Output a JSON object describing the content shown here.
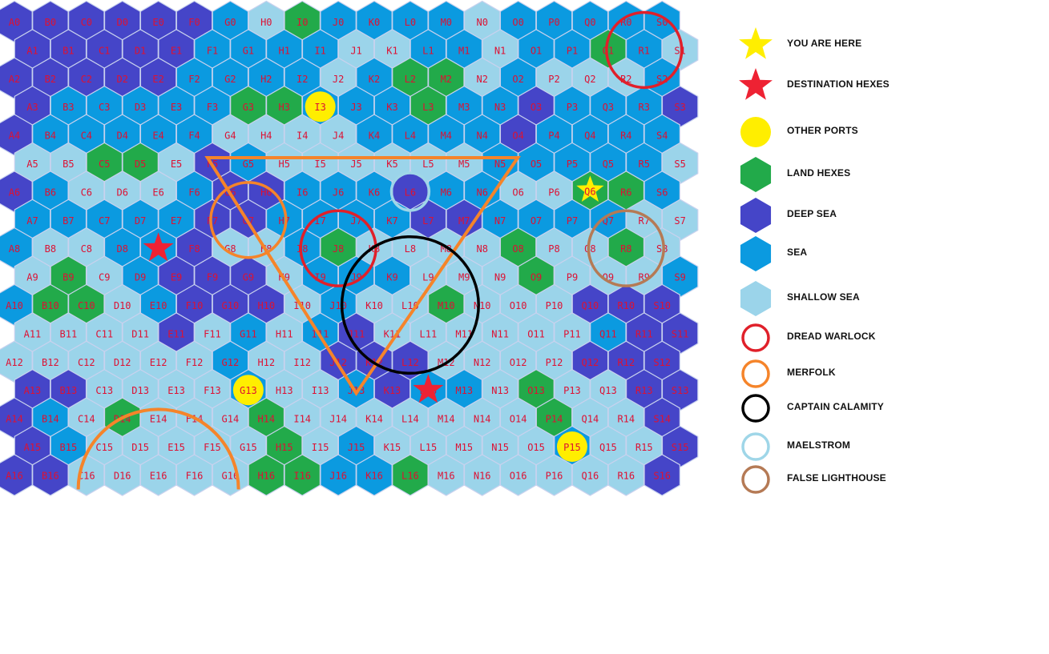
{
  "map": {
    "columns": [
      "A",
      "B",
      "C",
      "D",
      "E",
      "F",
      "G",
      "H",
      "I",
      "J",
      "K",
      "L",
      "M",
      "N",
      "O",
      "P",
      "Q",
      "R",
      "S"
    ],
    "rows": 17,
    "terrain_colors": {
      "deep": "#4545c8",
      "sea": "#0b9ae0",
      "shallow": "#9bd4ea",
      "land": "#22aa4a",
      "port": "#ffee00"
    },
    "default_terrain": "sea",
    "terrain": {
      "deep": [
        "A0",
        "B0",
        "C0",
        "D0",
        "E0",
        "F0",
        "A1",
        "B1",
        "C1",
        "D1",
        "E1",
        "A2",
        "B2",
        "C2",
        "D2",
        "E2",
        "A3",
        "S3",
        "A4",
        "O4",
        "F5",
        "A6",
        "G6",
        "H6",
        "F8",
        "E9",
        "F9",
        "G9",
        "F10",
        "G10",
        "H10",
        "Q10",
        "R10",
        "S10",
        "E11",
        "J11",
        "R11",
        "S11",
        "Q12",
        "R12",
        "S12",
        "A13",
        "B13",
        "K13",
        "R13",
        "S13",
        "A14",
        "S14",
        "A15",
        "S15",
        "A16",
        "B16",
        "S16",
        "L6",
        "J12",
        "K12",
        "L12",
        "O3",
        "L7",
        "M7",
        "F7",
        "G7"
      ],
      "shallow": [
        "H0",
        "N0",
        "J1",
        "K1",
        "N1",
        "S1",
        "J2",
        "N2",
        "P2",
        "Q2",
        "R2",
        "G4",
        "H4",
        "I4",
        "J4",
        "A5",
        "B5",
        "E5",
        "H5",
        "I5",
        "J5",
        "K5",
        "L5",
        "M5",
        "S5",
        "C6",
        "D6",
        "E6",
        "O6",
        "P6",
        "R7",
        "S7",
        "B8",
        "C8",
        "G8",
        "H8",
        "K8",
        "L8",
        "M8",
        "N8",
        "P8",
        "Q8",
        "S8",
        "A9",
        "C9",
        "H9",
        "L9",
        "M9",
        "N9",
        "P9",
        "Q9",
        "R9",
        "D10",
        "I10",
        "K10",
        "L10",
        "N10",
        "O10",
        "P10",
        "A11",
        "B11",
        "C11",
        "D11",
        "F11",
        "H11",
        "K11",
        "L11",
        "M11",
        "N11",
        "O11",
        "P11",
        "A12",
        "B12",
        "C12",
        "D12",
        "E12",
        "F12",
        "H12",
        "I12",
        "M12",
        "N12",
        "O12",
        "P12",
        "C13",
        "D13",
        "E13",
        "F13",
        "H13",
        "I13",
        "N13",
        "P13",
        "Q13",
        "C14",
        "E14",
        "F14",
        "G14",
        "I14",
        "J14",
        "K14",
        "L14",
        "M14",
        "N14",
        "O14",
        "Q14",
        "R14",
        "C15",
        "D15",
        "E15",
        "F15",
        "G15",
        "I15",
        "K15",
        "L15",
        "M15",
        "N15",
        "O15",
        "Q15",
        "R15",
        "C16",
        "D16",
        "E16",
        "F16",
        "G16",
        "M16",
        "N16",
        "O16",
        "P16",
        "Q16",
        "R16"
      ],
      "land": [
        "I0",
        "Q1",
        "L2",
        "M2",
        "G3",
        "H3",
        "L3",
        "C5",
        "D5",
        "R6",
        "Q6",
        "J8",
        "O8",
        "R8",
        "B9",
        "O9",
        "B10",
        "C10",
        "M10",
        "O13",
        "D14",
        "H14",
        "P14",
        "H15",
        "H16",
        "I16",
        "L16"
      ],
      "port": [
        "I3",
        "G13",
        "P15"
      ]
    },
    "you_are_here": "Q6",
    "destinations": [
      "E8",
      "L13"
    ],
    "encounters": [
      {
        "kind": "dread_warlock",
        "center": "R1",
        "radius_hexes": 1.1,
        "color": "#e0202a"
      },
      {
        "kind": "dread_warlock",
        "center": "J8",
        "radius_hexes": 1.1,
        "color": "#e0202a"
      },
      {
        "kind": "merfolk",
        "center": "G7",
        "radius_hexes": 1.1,
        "color": "#f5842a"
      },
      {
        "kind": "captain_calamity",
        "center": "L10",
        "radius_hexes": 2.0,
        "color": "#000000"
      },
      {
        "kind": "maelstrom",
        "center": "L6",
        "radius_hexes": 0.55,
        "color": "#9fd6e8"
      },
      {
        "kind": "false_lighthouse",
        "center": "R8",
        "radius_hexes": 1.1,
        "color": "#b57a55"
      }
    ],
    "merfolk_zone": {
      "triangle": [
        [
          "F5",
          "N5"
        ],
        [
          "J13"
        ]
      ],
      "arc_center": "E16",
      "color": "#f5842a"
    }
  },
  "legend": {
    "items": [
      {
        "id": "you-are-here",
        "symbol": "star",
        "color": "#ffee00",
        "label": "YOU ARE HERE"
      },
      {
        "id": "destination-hexes",
        "symbol": "star",
        "color": "#ee2233",
        "label": "DESTINATION HEXES"
      },
      {
        "id": "other-ports",
        "symbol": "circle-fill",
        "color": "#ffee00",
        "label": "OTHER PORTS"
      },
      {
        "id": "land-hexes",
        "symbol": "hex",
        "color": "#22aa4a",
        "label": "LAND HEXES"
      },
      {
        "id": "deep-sea",
        "symbol": "hex",
        "color": "#4545c8",
        "label": "DEEP SEA"
      },
      {
        "id": "sea",
        "symbol": "hex",
        "color": "#0b9ae0",
        "label": "SEA"
      },
      {
        "id": "shallow-sea",
        "symbol": "hex",
        "color": "#9bd4ea",
        "label": "SHALLOW SEA"
      },
      {
        "id": "dread-warlock",
        "symbol": "ring",
        "color": "#e0202a",
        "label": "DREAD WARLOCK"
      },
      {
        "id": "merfolk",
        "symbol": "ring",
        "color": "#f5842a",
        "label": "MERFOLK"
      },
      {
        "id": "captain-calamity",
        "symbol": "ring",
        "color": "#000000",
        "label": "CAPTAIN CALAMITY"
      },
      {
        "id": "maelstrom",
        "symbol": "ring",
        "color": "#9fd6e8",
        "label": "MAELSTROM"
      },
      {
        "id": "false-lighthouse",
        "symbol": "ring",
        "color": "#b57a55",
        "label": "FALSE LIGHTHOUSE"
      }
    ]
  }
}
